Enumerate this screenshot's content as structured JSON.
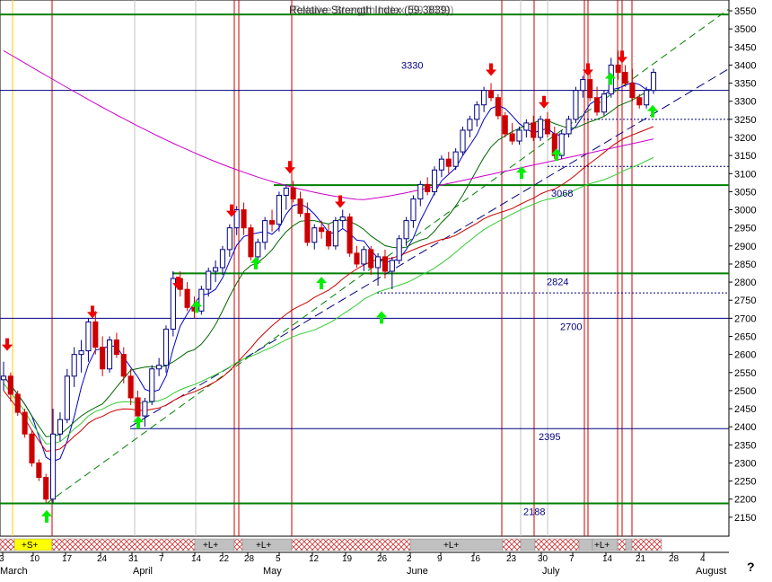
{
  "header": {
    "title_a": "Relative Strength Index (59.3839)",
    "title_b": "Relative Strength Index (59.3839)"
  },
  "colors": {
    "price": "#000080",
    "up": "#ffffff",
    "down": "#cc0000",
    "ma_blue": "#0000cc",
    "ma_green_dark": "#006600",
    "ma_red": "#cc0000",
    "ma_green_light": "#33cc33",
    "ma_magenta": "#cc00cc",
    "level_green": "#008000",
    "level_blue": "#000080",
    "cycle_red": "#cc0000",
    "cycle_yellow": "#ffcc00",
    "arrow_up": "#00ee00",
    "arrow_down": "#ee0000",
    "band_grey": "#c0c0c0",
    "band_yellow": "#ffff00",
    "band_check": "#ff9999"
  },
  "chart_data": {
    "type": "candlestick",
    "y_axis": {
      "min": 2100,
      "max": 3570,
      "ticks": [
        2150,
        2200,
        2250,
        2300,
        2350,
        2400,
        2450,
        2500,
        2550,
        2600,
        2650,
        2700,
        2750,
        2800,
        2850,
        2900,
        2950,
        3000,
        3050,
        3100,
        3150,
        3200,
        3250,
        3300,
        3350,
        3400,
        3450,
        3500,
        3550
      ]
    },
    "x_axis": {
      "day_ticks": [
        "3",
        "10",
        "17",
        "24",
        "31",
        "7",
        "14",
        "22",
        "28",
        "5",
        "12",
        "19",
        "26",
        "2",
        "9",
        "16",
        "23",
        "30",
        "7",
        "14",
        "21",
        "28",
        "4"
      ],
      "month_labels": [
        "March",
        "April",
        "May",
        "June",
        "July",
        "August"
      ],
      "extra_label": "?"
    },
    "candles": [
      [
        2530,
        2580,
        2500,
        2540
      ],
      [
        2540,
        2550,
        2470,
        2490
      ],
      [
        2490,
        2500,
        2430,
        2440
      ],
      [
        2440,
        2450,
        2370,
        2380
      ],
      [
        2380,
        2390,
        2290,
        2300
      ],
      [
        2300,
        2310,
        2250,
        2260
      ],
      [
        2260,
        2270,
        2190,
        2200
      ],
      [
        2200,
        2450,
        2190,
        2380
      ],
      [
        2380,
        2440,
        2360,
        2420
      ],
      [
        2420,
        2560,
        2410,
        2540
      ],
      [
        2540,
        2620,
        2510,
        2600
      ],
      [
        2600,
        2640,
        2550,
        2610
      ],
      [
        2610,
        2700,
        2580,
        2690
      ],
      [
        2690,
        2720,
        2600,
        2620
      ],
      [
        2620,
        2650,
        2540,
        2560
      ],
      [
        2560,
        2650,
        2550,
        2640
      ],
      [
        2640,
        2660,
        2590,
        2600
      ],
      [
        2600,
        2620,
        2520,
        2540
      ],
      [
        2540,
        2560,
        2460,
        2480
      ],
      [
        2480,
        2500,
        2410,
        2430
      ],
      [
        2430,
        2480,
        2400,
        2470
      ],
      [
        2470,
        2570,
        2460,
        2560
      ],
      [
        2560,
        2590,
        2540,
        2570
      ],
      [
        2570,
        2680,
        2550,
        2670
      ],
      [
        2670,
        2830,
        2650,
        2810
      ],
      [
        2810,
        2830,
        2760,
        2780
      ],
      [
        2780,
        2800,
        2720,
        2730
      ],
      [
        2730,
        2760,
        2700,
        2720
      ],
      [
        2720,
        2790,
        2710,
        2780
      ],
      [
        2780,
        2840,
        2760,
        2830
      ],
      [
        2830,
        2860,
        2800,
        2840
      ],
      [
        2840,
        2900,
        2820,
        2890
      ],
      [
        2890,
        2960,
        2870,
        2950
      ],
      [
        2950,
        3010,
        2930,
        3000
      ],
      [
        3000,
        3020,
        2930,
        2950
      ],
      [
        2950,
        2960,
        2860,
        2870
      ],
      [
        2870,
        2920,
        2850,
        2910
      ],
      [
        2910,
        2980,
        2890,
        2970
      ],
      [
        2970,
        3000,
        2940,
        2960
      ],
      [
        2960,
        3050,
        2940,
        3040
      ],
      [
        3040,
        3070,
        3000,
        3060
      ],
      [
        3060,
        3080,
        3020,
        3030
      ],
      [
        3030,
        3050,
        2980,
        2990
      ],
      [
        2990,
        3020,
        2900,
        2910
      ],
      [
        2910,
        2960,
        2890,
        2950
      ],
      [
        2950,
        2970,
        2920,
        2940
      ],
      [
        2940,
        2960,
        2890,
        2900
      ],
      [
        2900,
        2980,
        2890,
        2970
      ],
      [
        2970,
        3000,
        2950,
        2980
      ],
      [
        2980,
        2990,
        2870,
        2880
      ],
      [
        2880,
        2900,
        2840,
        2850
      ],
      [
        2850,
        2900,
        2830,
        2890
      ],
      [
        2890,
        2900,
        2820,
        2840
      ],
      [
        2840,
        2880,
        2790,
        2870
      ],
      [
        2870,
        2890,
        2810,
        2830
      ],
      [
        2830,
        2870,
        2780,
        2860
      ],
      [
        2860,
        2930,
        2850,
        2920
      ],
      [
        2920,
        2980,
        2900,
        2970
      ],
      [
        2970,
        3040,
        2950,
        3030
      ],
      [
        3030,
        3080,
        3010,
        3070
      ],
      [
        3070,
        3090,
        3040,
        3050
      ],
      [
        3050,
        3120,
        3040,
        3110
      ],
      [
        3110,
        3150,
        3090,
        3140
      ],
      [
        3140,
        3160,
        3100,
        3120
      ],
      [
        3120,
        3170,
        3110,
        3160
      ],
      [
        3160,
        3230,
        3150,
        3220
      ],
      [
        3220,
        3260,
        3200,
        3250
      ],
      [
        3250,
        3300,
        3230,
        3290
      ],
      [
        3290,
        3340,
        3270,
        3330
      ],
      [
        3330,
        3350,
        3300,
        3310
      ],
      [
        3310,
        3320,
        3250,
        3260
      ],
      [
        3260,
        3270,
        3200,
        3210
      ],
      [
        3210,
        3240,
        3180,
        3190
      ],
      [
        3190,
        3230,
        3180,
        3220
      ],
      [
        3220,
        3250,
        3200,
        3240
      ],
      [
        3240,
        3260,
        3190,
        3200
      ],
      [
        3200,
        3260,
        3190,
        3250
      ],
      [
        3250,
        3270,
        3200,
        3210
      ],
      [
        3210,
        3230,
        3140,
        3150
      ],
      [
        3150,
        3220,
        3140,
        3210
      ],
      [
        3210,
        3260,
        3200,
        3250
      ],
      [
        3250,
        3340,
        3240,
        3330
      ],
      [
        3330,
        3370,
        3310,
        3360
      ],
      [
        3360,
        3380,
        3300,
        3310
      ],
      [
        3310,
        3340,
        3260,
        3270
      ],
      [
        3270,
        3330,
        3260,
        3320
      ],
      [
        3320,
        3420,
        3310,
        3400
      ],
      [
        3400,
        3440,
        3360,
        3380
      ],
      [
        3380,
        3400,
        3340,
        3350
      ],
      [
        3350,
        3390,
        3300,
        3310
      ],
      [
        3310,
        3320,
        3280,
        3290
      ],
      [
        3290,
        3340,
        3280,
        3330
      ],
      [
        3330,
        3390,
        3320,
        3380
      ]
    ],
    "horizontal_levels": [
      {
        "label": "3330",
        "value": 3330,
        "style": "solid",
        "color": "level_blue"
      },
      {
        "label": "3068",
        "value": 3068,
        "style": "solid",
        "color": "level_green"
      },
      {
        "label": "2824",
        "value": 2824,
        "style": "solid",
        "color": "level_green"
      },
      {
        "label": "2700",
        "value": 2700,
        "style": "solid",
        "color": "level_blue"
      },
      {
        "label": "2395",
        "value": 2395,
        "style": "solid",
        "color": "level_blue"
      },
      {
        "label": "2188",
        "value": 2188,
        "style": "solid",
        "color": "level_green"
      },
      {
        "label": "",
        "value": 3540,
        "style": "solid",
        "color": "level_green"
      },
      {
        "label": "",
        "value": 3250,
        "style": "dotted",
        "color": "level_blue"
      },
      {
        "label": "",
        "value": 3120,
        "style": "dotted",
        "color": "level_blue"
      },
      {
        "label": "",
        "value": 2770,
        "style": "dotted",
        "color": "level_blue"
      }
    ],
    "level_labels": [
      "3330",
      "3068",
      "2824",
      "2700",
      "2395",
      "2188"
    ]
  }
}
